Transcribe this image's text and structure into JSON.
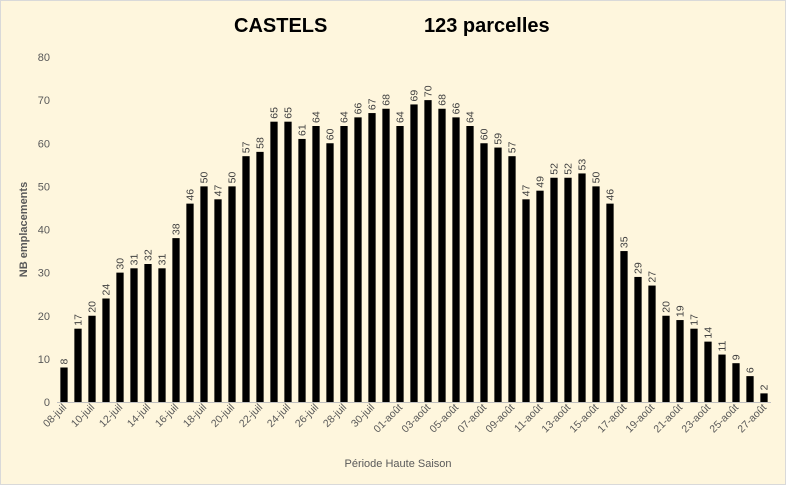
{
  "chart_data": {
    "type": "bar",
    "title": "CASTELS",
    "subtitle": "123 parcelles",
    "xlabel": "Période Haute Saison",
    "ylabel": "NB emplacements",
    "ylim": [
      0,
      80
    ],
    "yticks": [
      0,
      10,
      20,
      30,
      40,
      50,
      60,
      70,
      80
    ],
    "grid": false,
    "legend": "none",
    "bar_color": "#000000",
    "background": "#fef6dd",
    "categories": [
      "08-juil",
      "09-juil",
      "10-juil",
      "11-juil",
      "12-juil",
      "13-juil",
      "14-juil",
      "15-juil",
      "16-juil",
      "17-juil",
      "18-juil",
      "19-juil",
      "20-juil",
      "21-juil",
      "22-juil",
      "23-juil",
      "24-juil",
      "25-juil",
      "26-juil",
      "27-juil",
      "28-juil",
      "29-juil",
      "30-juil",
      "31-juil",
      "01-août",
      "02-août",
      "03-août",
      "04-août",
      "05-août",
      "06-août",
      "07-août",
      "08-août",
      "09-août",
      "10-août",
      "11-août",
      "12-août",
      "13-août",
      "14-août",
      "15-août",
      "16-août",
      "17-août",
      "18-août",
      "19-août",
      "20-août",
      "21-août",
      "22-août",
      "23-août",
      "24-août",
      "25-août",
      "26-août",
      "27-août"
    ],
    "tick_labels": [
      "08-juil",
      "10-juil",
      "12-juil",
      "14-juil",
      "16-juil",
      "18-juil",
      "20-juil",
      "22-juil",
      "24-juil",
      "26-juil",
      "28-juil",
      "30-juil",
      "01-août",
      "03-août",
      "05-août",
      "07-août",
      "09-août",
      "11-août",
      "13-août",
      "15-août",
      "17-août",
      "19-août",
      "21-août",
      "23-août",
      "25-août",
      "27-août"
    ],
    "values": [
      8,
      17,
      20,
      24,
      30,
      31,
      32,
      31,
      38,
      46,
      50,
      47,
      50,
      57,
      58,
      65,
      65,
      61,
      64,
      60,
      64,
      66,
      67,
      68,
      64,
      69,
      70,
      68,
      66,
      64,
      60,
      59,
      57,
      47,
      49,
      52,
      52,
      53,
      50,
      46,
      35,
      29,
      27,
      20,
      19,
      17,
      14,
      11,
      9,
      6,
      2
    ]
  }
}
